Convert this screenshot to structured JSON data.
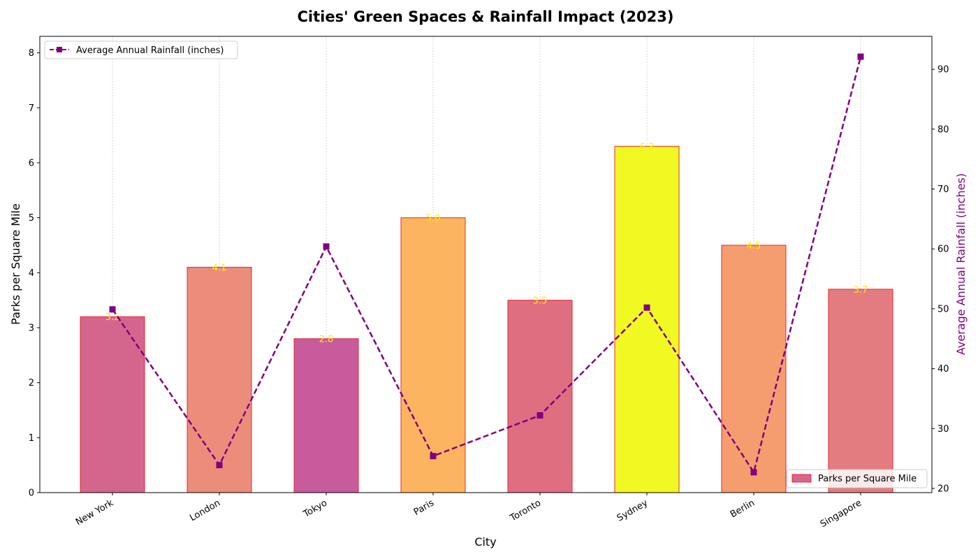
{
  "chart_data": {
    "type": "bar",
    "title": "Cities' Green Spaces & Rainfall Impact (2023)",
    "xlabel": "City",
    "ylabel": "Parks per Square Mile",
    "y2label": "Average Annual Rainfall (inches)",
    "categories": [
      "New York",
      "London",
      "Tokyo",
      "Paris",
      "Toronto",
      "Sydney",
      "Berlin",
      "Singapore"
    ],
    "ylim": [
      0,
      8.3
    ],
    "y2lim": [
      19.3,
      95.5
    ],
    "yticks": [
      0,
      1,
      2,
      3,
      4,
      5,
      6,
      7,
      8
    ],
    "y2ticks": [
      20,
      30,
      40,
      50,
      60,
      70,
      80,
      90
    ],
    "grid": "vertical dotted",
    "series": [
      {
        "name": "Parks per Square Mile",
        "kind": "bar",
        "axis": "left",
        "values": [
          3.2,
          4.1,
          2.8,
          5.0,
          3.5,
          6.3,
          4.5,
          3.7
        ],
        "labels": [
          "3.2",
          "4.1",
          "2.8",
          "5.0",
          "3.5",
          "6.3",
          "4.5",
          "3.7"
        ],
        "colors": [
          "#d4668e",
          "#ec8d7b",
          "#c75b9c",
          "#fdb460",
          "#df6e80",
          "#f0f921",
          "#f59d6e",
          "#e37c80"
        ],
        "edge_color": "#e8282d"
      },
      {
        "name": "Average Annual Rainfall (inches)",
        "kind": "line",
        "axis": "right",
        "values": [
          49.9,
          23.9,
          60.4,
          25.4,
          32.2,
          50.2,
          22.7,
          92.1
        ],
        "color": "#800080",
        "line_style": "dashed",
        "marker": "square"
      }
    ],
    "legend_line_position": "upper-left",
    "legend_bar_position": "lower-right",
    "y2label_color": "#800080"
  }
}
